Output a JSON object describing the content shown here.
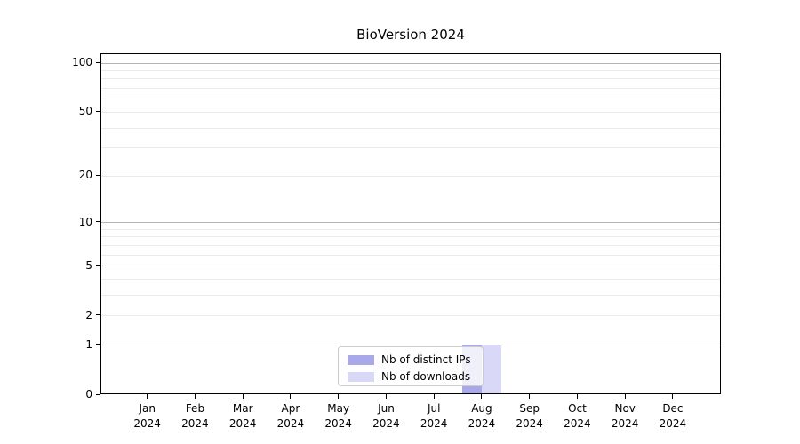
{
  "chart_data": {
    "type": "bar",
    "title": "BioVersion 2024",
    "x": {
      "months": [
        "Jan",
        "Feb",
        "Mar",
        "Apr",
        "May",
        "Jun",
        "Jul",
        "Aug",
        "Sep",
        "Oct",
        "Nov",
        "Dec"
      ],
      "year": "2024"
    },
    "y_axis": {
      "scale": "log10(value+1)",
      "labeled_ticks": [
        100,
        50,
        20,
        10,
        5,
        2,
        1,
        0
      ],
      "major_gridlines": [
        100,
        10,
        1
      ],
      "minor_gridlines": [
        2,
        3,
        4,
        5,
        6,
        7,
        8,
        9,
        20,
        30,
        40,
        50,
        60,
        70,
        80,
        90
      ],
      "ylim_max": 113,
      "grid": "on"
    },
    "series": [
      {
        "key": "distinct-ips",
        "name": "Nb of distinct IPs",
        "color": "#a9a9ea",
        "values": [
          0,
          0,
          0,
          0,
          0,
          0,
          0,
          1,
          0,
          0,
          0,
          0
        ]
      },
      {
        "key": "downloads",
        "name": "Nb of downloads",
        "color": "#d9d9f7",
        "values": [
          0,
          0,
          0,
          0,
          0,
          0,
          0,
          1,
          0,
          0,
          0,
          0
        ]
      }
    ],
    "legend": {
      "position": "bottom-center",
      "entries": [
        "Nb of distinct IPs",
        "Nb of downloads"
      ]
    }
  },
  "colors": {
    "major_grid": "#b5b5b5",
    "minor_grid": "#ebebeb",
    "spine": "#000000",
    "text": "#000000",
    "legend_border": "#cccccc",
    "legend_background": "rgba(255,255,255,0.82)"
  }
}
